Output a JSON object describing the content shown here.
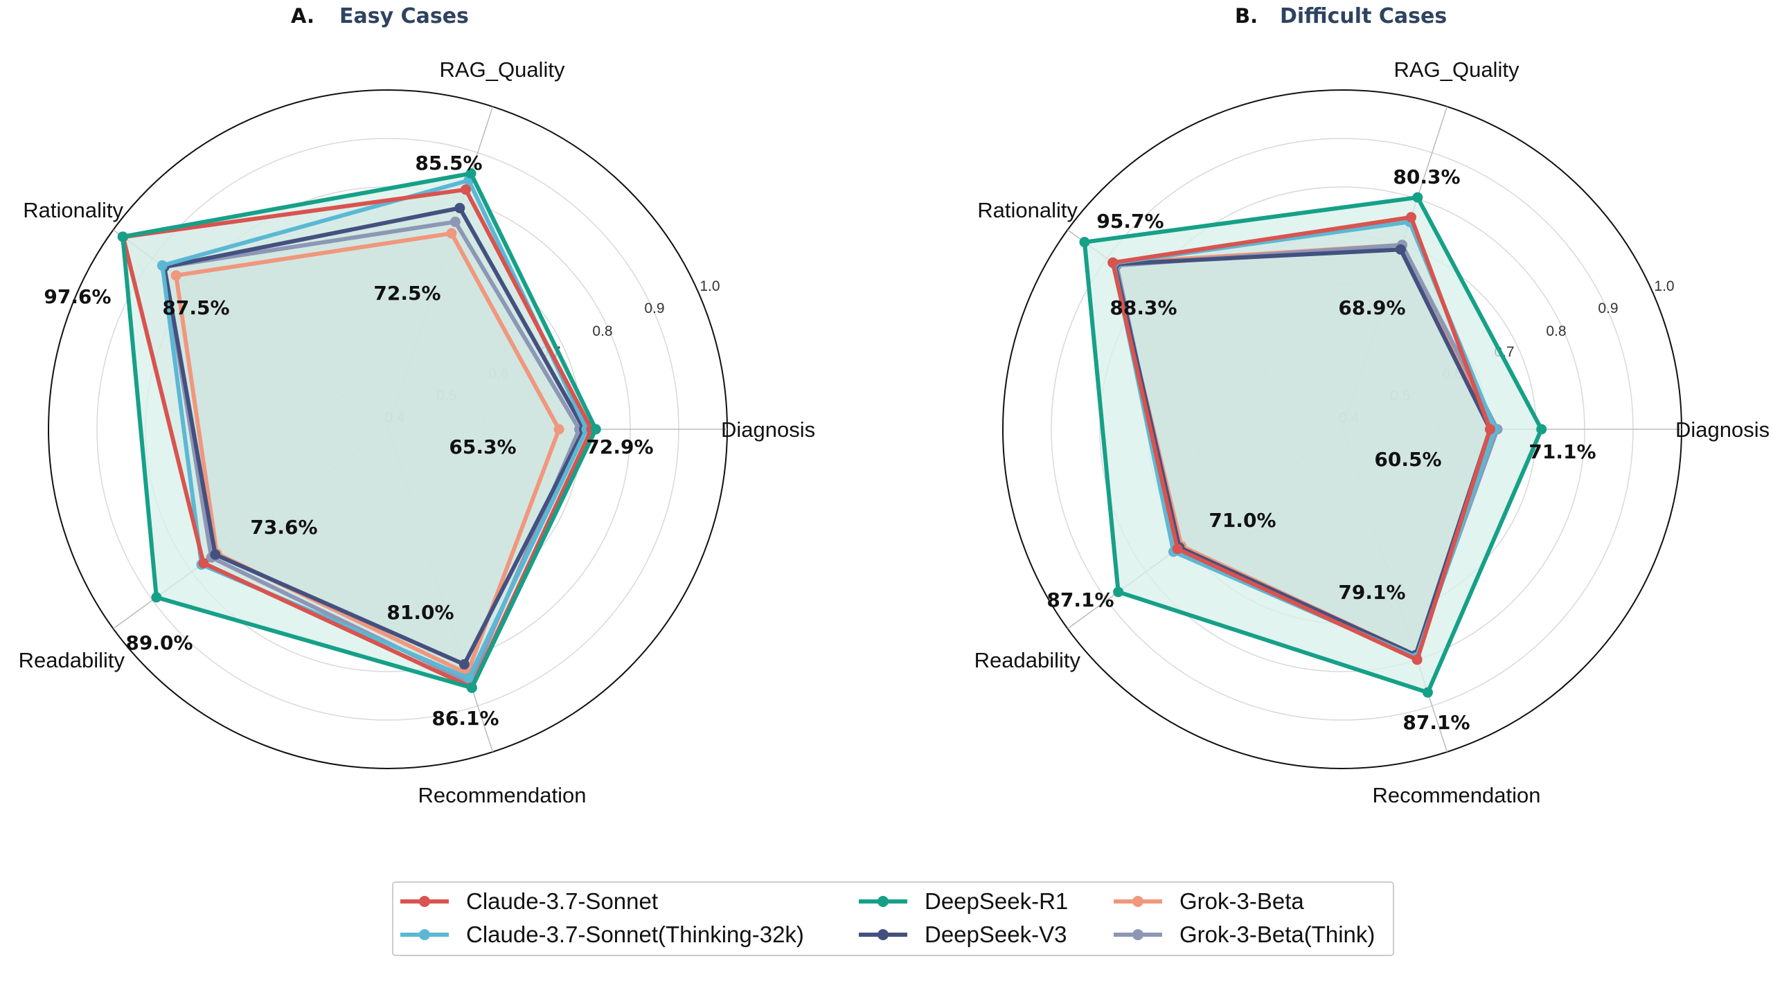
{
  "chart_data": [
    {
      "type": "radar",
      "panel_label": "A.",
      "title": "Easy Cases",
      "axes": [
        "Diagnosis",
        "RAG_Quality",
        "Rationality",
        "Readability",
        "Recommendation"
      ],
      "rlim": [
        0.3,
        1.0
      ],
      "rticks": [
        0.4,
        0.5,
        0.6,
        0.7,
        0.8,
        0.9,
        1.0
      ],
      "rtick_labels": [
        "0.4",
        "0.5",
        "0.6",
        "0.7",
        "0.8",
        "0.9",
        "1.0"
      ],
      "series": [
        {
          "name": "Claude-3.7-Sonnet",
          "values": [
            0.72,
            0.82,
            0.975,
            0.77,
            0.86
          ]
        },
        {
          "name": "Claude-3.7-Sonnet(Thinking-32k)",
          "values": [
            0.71,
            0.84,
            0.875,
            0.775,
            0.84
          ]
        },
        {
          "name": "DeepSeek-R1",
          "values": [
            0.729,
            0.855,
            0.976,
            0.89,
            0.861
          ]
        },
        {
          "name": "DeepSeek-V3",
          "values": [
            0.705,
            0.78,
            0.87,
            0.74,
            0.81
          ]
        },
        {
          "name": "Grok-3-Beta",
          "values": [
            0.653,
            0.725,
            0.84,
            0.736,
            0.83
          ]
        },
        {
          "name": "Grok-3-Beta(Think)",
          "values": [
            0.695,
            0.75,
            0.87,
            0.75,
            0.85
          ]
        }
      ],
      "annotations": [
        {
          "text": "72.9%",
          "axis": "Diagnosis"
        },
        {
          "text": "65.3%",
          "axis": "Diagnosis"
        },
        {
          "text": "85.5%",
          "axis": "RAG_Quality"
        },
        {
          "text": "72.5%",
          "axis": "RAG_Quality"
        },
        {
          "text": "97.6%",
          "axis": "Rationality"
        },
        {
          "text": "87.5%",
          "axis": "Rationality"
        },
        {
          "text": "89.0%",
          "axis": "Readability"
        },
        {
          "text": "73.6%",
          "axis": "Readability"
        },
        {
          "text": "86.1%",
          "axis": "Recommendation"
        },
        {
          "text": "81.0%",
          "axis": "Recommendation"
        }
      ]
    },
    {
      "type": "radar",
      "panel_label": "B.",
      "title": "Difficult Cases",
      "axes": [
        "Diagnosis",
        "RAG_Quality",
        "Rationality",
        "Readability",
        "Recommendation"
      ],
      "rlim": [
        0.3,
        1.0
      ],
      "rticks": [
        0.4,
        0.5,
        0.6,
        0.7,
        0.8,
        0.9,
        1.0
      ],
      "rtick_labels": [
        "0.4",
        "0.5",
        "0.6",
        "0.7",
        "0.8",
        "0.9",
        "1.0"
      ],
      "series": [
        {
          "name": "Claude-3.7-Sonnet",
          "values": [
            0.605,
            0.76,
            0.885,
            0.72,
            0.8
          ]
        },
        {
          "name": "Claude-3.7-Sonnet(Thinking-32k)",
          "values": [
            0.615,
            0.75,
            0.883,
            0.73,
            0.795
          ]
        },
        {
          "name": "DeepSeek-R1",
          "values": [
            0.711,
            0.803,
            0.957,
            0.871,
            0.871
          ]
        },
        {
          "name": "DeepSeek-V3",
          "values": [
            0.605,
            0.69,
            0.88,
            0.715,
            0.79
          ]
        },
        {
          "name": "Grok-3-Beta",
          "values": [
            0.61,
            0.7,
            0.883,
            0.71,
            0.79
          ]
        },
        {
          "name": "Grok-3-Beta(Think)",
          "values": [
            0.62,
            0.7,
            0.875,
            0.72,
            0.791
          ]
        }
      ],
      "annotations": [
        {
          "text": "71.1%",
          "axis": "Diagnosis"
        },
        {
          "text": "60.5%",
          "axis": "Diagnosis"
        },
        {
          "text": "80.3%",
          "axis": "RAG_Quality"
        },
        {
          "text": "68.9%",
          "axis": "RAG_Quality"
        },
        {
          "text": "95.7%",
          "axis": "Rationality"
        },
        {
          "text": "88.3%",
          "axis": "Rationality"
        },
        {
          "text": "87.1%",
          "axis": "Readability"
        },
        {
          "text": "71.0%",
          "axis": "Readability"
        },
        {
          "text": "87.1%",
          "axis": "Recommendation"
        },
        {
          "text": "79.1%",
          "axis": "Recommendation"
        }
      ]
    }
  ],
  "legend": {
    "placement": "bottom-center",
    "items": [
      {
        "name": "Claude-3.7-Sonnet"
      },
      {
        "name": "Claude-3.7-Sonnet(Thinking-32k)"
      },
      {
        "name": "DeepSeek-R1"
      },
      {
        "name": "DeepSeek-V3"
      },
      {
        "name": "Grok-3-Beta"
      },
      {
        "name": "Grok-3-Beta(Think)"
      }
    ]
  },
  "colors": {
    "Claude-3.7-Sonnet": "#d9534f",
    "Claude-3.7-Sonnet(Thinking-32k)": "#5bb8d4",
    "DeepSeek-R1": "#16a088",
    "DeepSeek-V3": "#44517f",
    "Grok-3-Beta": "#f0977d",
    "Grok-3-Beta(Think)": "#8d97b5",
    "r1_fill": "#d7f0ea",
    "inner_fill": "#b7bcc0",
    "grid": "#d9d9d9",
    "spoke": "#bbbbbb",
    "title": "#2e4360"
  }
}
